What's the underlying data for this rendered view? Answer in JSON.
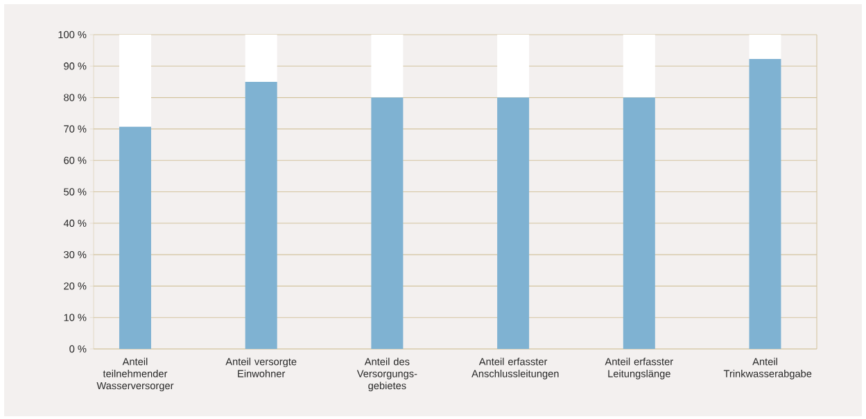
{
  "chart_data": {
    "type": "bar",
    "stacked": true,
    "categories": [
      "Anteil teilnehmender Wasserversorger",
      "Anteil versorgte Einwohner",
      "Anteil des Versorgungs-gebietes",
      "Anteil erfasster Anschlussleitungen",
      "Anteil erfasster Leitungslänge",
      "Anteil Trinkwasserabgabe"
    ],
    "series": [
      {
        "color": "#7fb2d2",
        "values": [
          70.7,
          85,
          80,
          80,
          80,
          92.3
        ]
      },
      {
        "color": "#ffffff",
        "values": [
          29.3,
          15,
          20,
          20,
          20,
          7.7
        ]
      }
    ],
    "ylim": [
      0,
      100
    ],
    "yticks": [
      {
        "value": 0,
        "label": "0 %"
      },
      {
        "value": 10,
        "label": "10 %"
      },
      {
        "value": 20,
        "label": "20 %"
      },
      {
        "value": 30,
        "label": "30 %"
      },
      {
        "value": 40,
        "label": "40 %"
      },
      {
        "value": 50,
        "label": "50 %"
      },
      {
        "value": 60,
        "label": "60 %"
      },
      {
        "value": 70,
        "label": "70 %"
      },
      {
        "value": 80,
        "label": "80 %"
      },
      {
        "value": 90,
        "label": "90 %"
      },
      {
        "value": 100,
        "label": "100 %"
      }
    ],
    "grid": "y"
  }
}
